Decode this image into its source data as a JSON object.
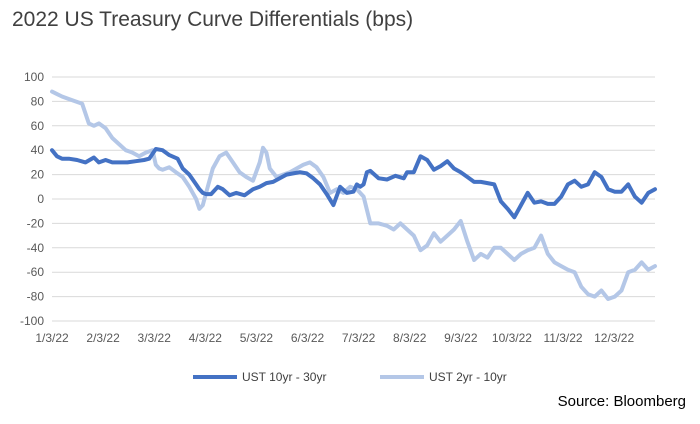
{
  "title": "2022 US Treasury Curve Differentials (bps)",
  "source": "Source: Bloomberg",
  "chart_data": {
    "type": "line",
    "title": "2022 US Treasury Curve Differentials (bps)",
    "ylim": [
      -100,
      100
    ],
    "yticks": [
      100,
      80,
      60,
      40,
      20,
      0,
      -20,
      -40,
      -60,
      -80,
      -100
    ],
    "xticks": [
      "1/3/22",
      "2/3/22",
      "3/3/22",
      "4/3/22",
      "5/3/22",
      "6/3/22",
      "7/3/22",
      "8/3/22",
      "9/3/22",
      "10/3/22",
      "11/3/22",
      "12/3/22"
    ],
    "grid": true,
    "legend_position": "bottom",
    "series": [
      {
        "name": "UST 10yr - 30yr",
        "color": "#4472C4",
        "x": [
          0,
          3,
          6,
          10,
          15,
          20,
          25,
          28,
          32,
          36,
          40,
          45,
          50,
          55,
          58,
          62,
          66,
          70,
          75,
          78,
          82,
          86,
          88,
          90,
          92,
          95,
          99,
          102,
          106,
          110,
          115,
          120,
          124,
          128,
          132,
          136,
          140,
          144,
          148,
          152,
          156,
          160,
          164,
          168,
          172,
          176,
          180,
          182,
          184,
          186,
          188,
          190,
          195,
          200,
          205,
          210,
          212,
          216,
          220,
          224,
          228,
          232,
          236,
          240,
          244,
          248,
          252,
          256,
          260,
          264,
          268,
          272,
          276,
          280,
          284,
          288,
          292,
          296,
          300,
          304,
          308,
          312,
          316,
          320,
          324,
          328,
          332,
          336,
          340,
          344,
          348,
          352,
          356,
          360
        ],
        "y": [
          40,
          35,
          33,
          33,
          32,
          30,
          34,
          30,
          32,
          30,
          30,
          30,
          31,
          32,
          33,
          41,
          40,
          36,
          33,
          25,
          20,
          12,
          8,
          5,
          4,
          4,
          10,
          8,
          3,
          5,
          3,
          8,
          10,
          13,
          14,
          17,
          20,
          21,
          22,
          21,
          17,
          12,
          4,
          -5,
          10,
          5,
          6,
          12,
          10,
          12,
          22,
          23,
          17,
          16,
          19,
          17,
          22,
          22,
          35,
          32,
          24,
          27,
          31,
          25,
          22,
          18,
          14,
          14,
          13,
          12,
          -2,
          -8,
          -15,
          -5,
          5,
          -3,
          -2,
          -4,
          -4,
          2,
          12,
          15,
          10,
          12,
          22,
          18,
          8,
          6,
          6,
          12,
          2,
          -3,
          5,
          8
        ],
        "dash": ""
      },
      {
        "name": "UST 2yr - 10yr",
        "color": "#B4C7E7",
        "x": [
          0,
          3,
          6,
          10,
          14,
          18,
          22,
          25,
          28,
          32,
          36,
          40,
          44,
          48,
          52,
          56,
          60,
          62,
          64,
          66,
          70,
          74,
          78,
          82,
          86,
          88,
          90,
          92,
          96,
          100,
          104,
          108,
          112,
          116,
          120,
          124,
          126,
          128,
          130,
          134,
          138,
          142,
          146,
          150,
          154,
          158,
          162,
          166,
          170,
          174,
          178,
          182,
          186,
          190,
          195,
          200,
          204,
          208,
          212,
          216,
          220,
          224,
          228,
          232,
          236,
          240,
          244,
          248,
          252,
          256,
          260,
          264,
          268,
          272,
          276,
          280,
          284,
          288,
          292,
          296,
          300,
          304,
          308,
          312,
          316,
          320,
          324,
          328,
          332,
          336,
          340,
          344,
          348,
          352,
          356,
          360
        ],
        "y": [
          88,
          86,
          84,
          82,
          80,
          78,
          62,
          60,
          62,
          58,
          50,
          45,
          40,
          38,
          35,
          38,
          40,
          28,
          25,
          24,
          26,
          22,
          18,
          10,
          0,
          -8,
          -5,
          5,
          25,
          35,
          38,
          30,
          22,
          18,
          15,
          30,
          42,
          38,
          25,
          18,
          20,
          22,
          25,
          28,
          30,
          26,
          18,
          5,
          8,
          5,
          10,
          8,
          2,
          -20,
          -20,
          -22,
          -25,
          -20,
          -25,
          -30,
          -42,
          -38,
          -28,
          -35,
          -30,
          -25,
          -18,
          -35,
          -50,
          -45,
          -48,
          -40,
          -40,
          -45,
          -50,
          -45,
          -42,
          -40,
          -30,
          -45,
          -52,
          -55,
          -58,
          -60,
          -72,
          -78,
          -80,
          -75,
          -82,
          -80,
          -75,
          -60,
          -58,
          -52,
          -58,
          -55
        ],
        "dash": ""
      }
    ]
  }
}
